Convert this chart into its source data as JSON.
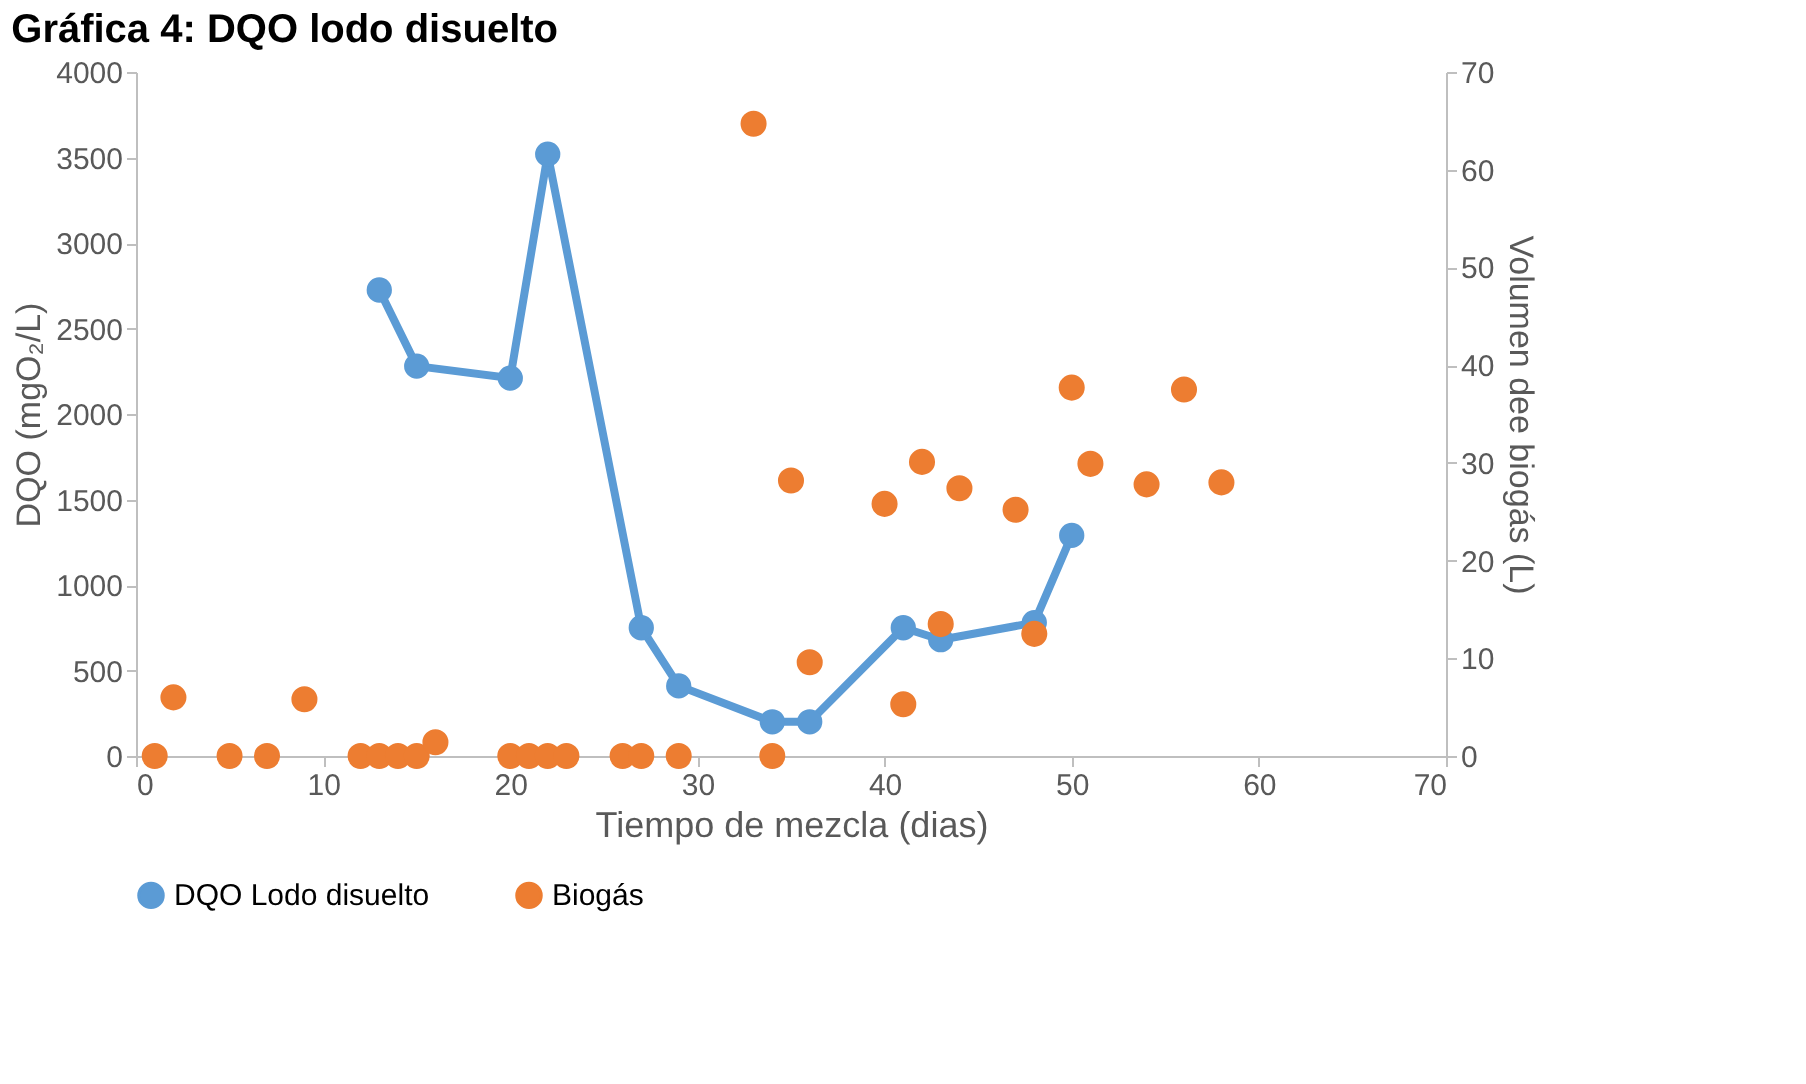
{
  "chart_data": {
    "type": "line",
    "title": "Gráfica 4: DQO lodo disuelto",
    "xlabel": "Tiempo de mezcla (dias)",
    "ylabel": "DQO (mgO₂/L)",
    "y2label": "Volumen dee biogás (L)",
    "xlim": [
      0,
      70
    ],
    "xticks": [
      0,
      10,
      20,
      30,
      40,
      50,
      60,
      70
    ],
    "ylim": [
      0,
      4000
    ],
    "yticks": [
      0,
      500,
      1000,
      1500,
      2000,
      2500,
      3000,
      3500,
      4000
    ],
    "y2lim": [
      0,
      70
    ],
    "y2ticks": [
      0,
      10,
      20,
      30,
      40,
      50,
      60,
      70
    ],
    "grid": false,
    "legend": "bottom",
    "marker": "circle",
    "line_style": "solid",
    "series": [
      {
        "name": "DQO Lodo disuelto",
        "type": "line",
        "color": "#5b9bd5",
        "x": [
          13,
          15,
          20,
          22,
          27,
          29,
          34,
          36,
          41,
          43,
          48,
          50
        ],
        "values": [
          2725,
          2280,
          2210,
          3520,
          750,
          410,
          200,
          200,
          750,
          680,
          780,
          1290
        ]
      },
      {
        "name": "Biogás",
        "type": "scatter",
        "axis": "y2",
        "color": "#ed7d31",
        "x": [
          1,
          2,
          5,
          7,
          9,
          12,
          13,
          14,
          15,
          16,
          20,
          21,
          22,
          23,
          26,
          27,
          29,
          33,
          34,
          35,
          36,
          40,
          41,
          42,
          43,
          44,
          47,
          48,
          50,
          51,
          54,
          56,
          58
        ],
        "values": [
          0,
          6,
          0,
          0,
          5.8,
          0,
          0,
          0,
          0,
          1.4,
          0,
          0,
          0,
          0,
          0,
          0,
          0,
          64.7,
          0,
          28.2,
          9.6,
          25.8,
          5.3,
          30.1,
          13.5,
          27.4,
          25.2,
          12.5,
          37.7,
          29.9,
          27.8,
          37.5,
          28
        ]
      }
    ]
  }
}
